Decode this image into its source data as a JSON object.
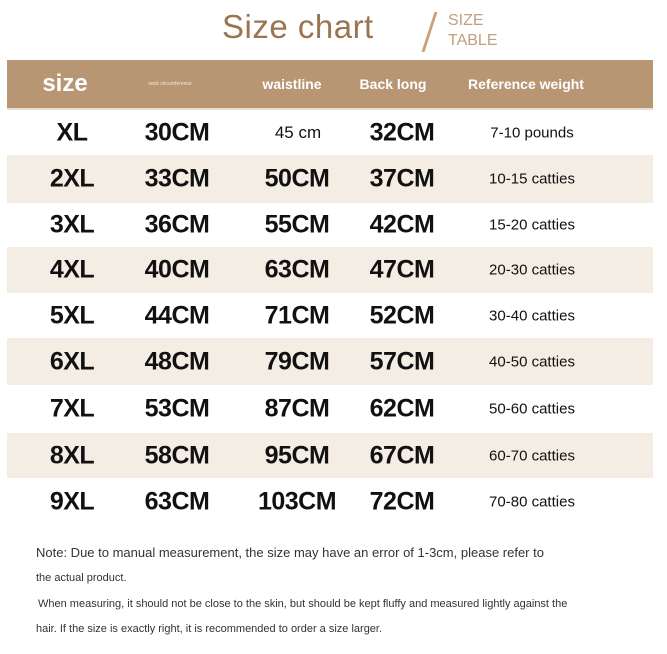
{
  "title": "Size chart",
  "subtitle": [
    "SIZE",
    "TABLE"
  ],
  "colors": {
    "header_bg": "#b99673",
    "band": "#f4ede4",
    "title": "#9b7451"
  },
  "headers": [
    "size",
    "neck circumference",
    "waistline",
    "Back long",
    "Reference weight"
  ],
  "rows": [
    {
      "size": "XL",
      "neck": "30CM",
      "waist": "45 cm",
      "back": "32CM",
      "weight": "7-10 pounds"
    },
    {
      "size": "2XL",
      "neck": "33CM",
      "waist": "50CM",
      "back": "37CM",
      "weight": "10-15 catties"
    },
    {
      "size": "3XL",
      "neck": "36CM",
      "waist": "55CM",
      "back": "42CM",
      "weight": "15-20 catties"
    },
    {
      "size": "4XL",
      "neck": "40CM",
      "waist": "63CM",
      "back": "47CM",
      "weight": "20-30 catties"
    },
    {
      "size": "5XL",
      "neck": "44CM",
      "waist": "71CM",
      "back": "52CM",
      "weight": "30-40 catties"
    },
    {
      "size": "6XL",
      "neck": "48CM",
      "waist": "79CM",
      "back": "57CM",
      "weight": "40-50 catties"
    },
    {
      "size": "7XL",
      "neck": "53CM",
      "waist": "87CM",
      "back": "62CM",
      "weight": "50-60 catties"
    },
    {
      "size": "8XL",
      "neck": "58CM",
      "waist": "95CM",
      "back": "67CM",
      "weight": "60-70 catties"
    },
    {
      "size": "9XL",
      "neck": "63CM",
      "waist": "103CM",
      "back": "72CM",
      "weight": "70-80 catties"
    }
  ],
  "notes": [
    "Note: Due to manual measurement, the size may have an error of 1-3cm, please refer to",
    "the actual product.",
    "When measuring, it should not be close to the skin, but should be kept fluffy and measured lightly against the",
    "hair. If the size is exactly right, it is recommended to order a size larger."
  ]
}
